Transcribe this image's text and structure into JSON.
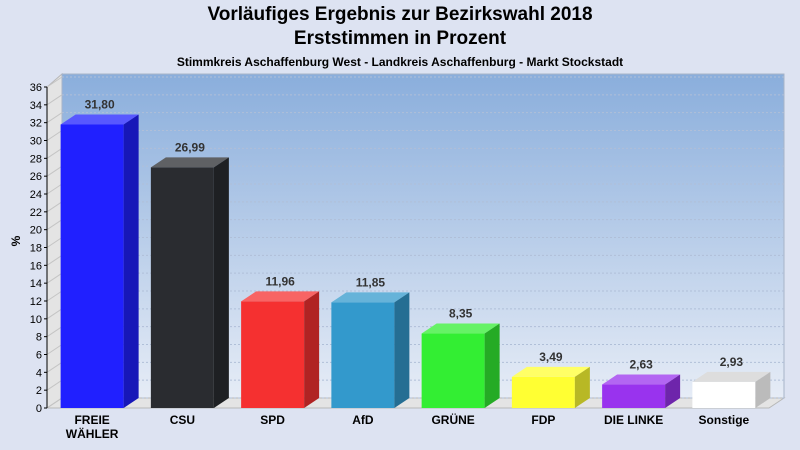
{
  "chart_data": {
    "type": "bar",
    "title": "Vorläufiges Ergebnis zur Bezirkswahl 2018",
    "subtitle": "Erststimmen in Prozent",
    "subtitle2": "Stimmkreis Aschaffenburg West - Landkreis Aschaffenburg - Markt Stockstadt",
    "ylabel": "%",
    "ylim": [
      0,
      36
    ],
    "yticks": [
      0,
      2,
      4,
      6,
      8,
      10,
      12,
      14,
      16,
      18,
      20,
      22,
      24,
      26,
      28,
      30,
      32,
      34,
      36
    ],
    "grid": true,
    "categories": [
      "FREIE WÄHLER",
      "CSU",
      "SPD",
      "AfD",
      "GRÜNE",
      "FDP",
      "DIE LINKE",
      "Sonstige"
    ],
    "values": [
      31.8,
      26.99,
      11.96,
      11.85,
      8.35,
      3.49,
      2.63,
      2.93
    ],
    "value_labels": [
      "31,80",
      "26,99",
      "11,96",
      "11,85",
      "8,35",
      "3,49",
      "2,63",
      "2,93"
    ],
    "colors": [
      "#2020ff",
      "#2a2c30",
      "#f53030",
      "#3399cc",
      "#33ee33",
      "#ffff33",
      "#9933ee",
      "#ffffff"
    ]
  }
}
